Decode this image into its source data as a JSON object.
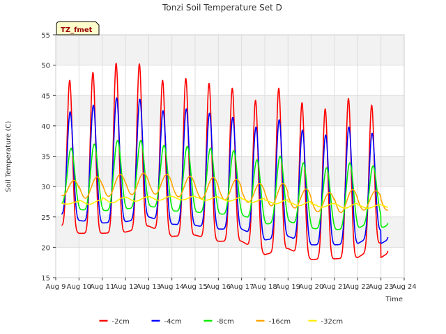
{
  "chart_data": {
    "type": "line",
    "title": "Tonzi Soil Temperature Set D",
    "xlabel": "Time",
    "ylabel": "Soil Temperature (C)",
    "badge": "TZ_fmet",
    "ylim": [
      15,
      55
    ],
    "yticks": [
      15,
      20,
      25,
      30,
      35,
      40,
      45,
      50,
      55
    ],
    "xlim": [
      9,
      24
    ],
    "xticks": [
      {
        "value": 9,
        "label": "Aug 9"
      },
      {
        "value": 10,
        "label": "Aug 10"
      },
      {
        "value": 11,
        "label": "Aug 11"
      },
      {
        "value": 12,
        "label": "Aug 12"
      },
      {
        "value": 13,
        "label": "Aug 13"
      },
      {
        "value": 14,
        "label": "Aug 14"
      },
      {
        "value": 15,
        "label": "Aug 15"
      },
      {
        "value": 16,
        "label": "Aug 16"
      },
      {
        "value": 17,
        "label": "Aug 17"
      },
      {
        "value": 18,
        "label": "Aug 18"
      },
      {
        "value": 19,
        "label": "Aug 19"
      },
      {
        "value": 20,
        "label": "Aug 20"
      },
      {
        "value": 21,
        "label": "Aug 21"
      },
      {
        "value": 22,
        "label": "Aug 22"
      },
      {
        "value": 23,
        "label": "Aug 23"
      },
      {
        "value": 24,
        "label": "Aug 24"
      }
    ],
    "grid": true,
    "legend_position": "bottom",
    "day_start": 9.25,
    "day_end": 23.3,
    "series": [
      {
        "name": "-2cm",
        "color": "#ff0000",
        "peak_phase": 0.6,
        "sharpness": 4,
        "peaks": [
          47.5,
          48.8,
          50.3,
          50.2,
          47.5,
          47.8,
          47.0,
          46.2,
          44.2,
          46.2,
          43.8,
          42.8,
          44.5,
          43.4
        ],
        "troughs": [
          24.0,
          22.3,
          22.3,
          22.5,
          23.5,
          21.8,
          22.0,
          21.0,
          21.0,
          18.8,
          19.8,
          18.0,
          18.1,
          18.3,
          20.8
        ]
      },
      {
        "name": "-4cm",
        "color": "#0000ff",
        "peak_phase": 0.62,
        "sharpness": 3,
        "peaks": [
          42.3,
          43.4,
          44.6,
          44.4,
          42.5,
          42.8,
          42.1,
          41.4,
          39.8,
          41.0,
          39.3,
          38.5,
          39.8,
          38.8
        ],
        "troughs": [
          25.7,
          24.4,
          24.0,
          24.2,
          25.0,
          23.8,
          23.6,
          23.0,
          23.0,
          21.2,
          21.8,
          20.4,
          20.4,
          20.6,
          22.8
        ]
      },
      {
        "name": "-8cm",
        "color": "#00ee00",
        "peak_phase": 0.66,
        "sharpness": 2,
        "peaks": [
          36.3,
          37.0,
          37.6,
          37.6,
          36.8,
          36.6,
          36.3,
          35.9,
          34.4,
          35.0,
          33.9,
          33.1,
          33.9,
          33.4
        ],
        "troughs": [
          27.5,
          26.2,
          26.0,
          26.3,
          26.8,
          26.0,
          25.8,
          25.5,
          25.3,
          23.8,
          24.3,
          23.1,
          22.9,
          23.1,
          25.0
        ]
      },
      {
        "name": "-16cm",
        "color": "#ffa500",
        "peak_phase": 0.78,
        "sharpness": 1,
        "peaks": [
          31.0,
          31.6,
          32.0,
          32.2,
          32.0,
          31.7,
          31.5,
          31.2,
          30.5,
          30.5,
          29.6,
          29.0,
          29.5,
          29.3
        ],
        "troughs": [
          28.7,
          28.0,
          28.3,
          28.6,
          28.9,
          28.4,
          28.1,
          27.9,
          27.6,
          26.9,
          26.7,
          25.9,
          25.7,
          25.8,
          27.0
        ]
      },
      {
        "name": "-32cm",
        "color": "#ffee00",
        "peak_phase": 0.95,
        "sharpness": 1,
        "peaks": [
          27.5,
          27.8,
          28.2,
          28.3,
          28.4,
          28.4,
          28.3,
          28.2,
          28.0,
          27.8,
          27.5,
          27.2,
          27.2,
          27.0
        ],
        "troughs": [
          27.2,
          27.0,
          27.2,
          27.5,
          27.7,
          27.8,
          27.8,
          27.7,
          27.5,
          27.3,
          27.0,
          26.7,
          26.5,
          26.4,
          26.5
        ]
      }
    ]
  }
}
